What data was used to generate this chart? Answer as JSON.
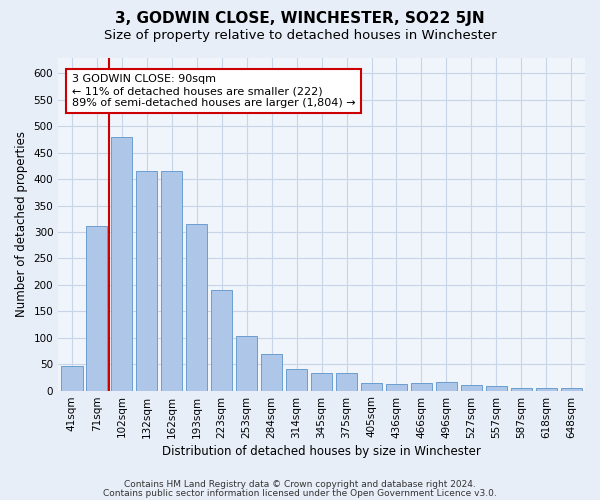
{
  "title": "3, GODWIN CLOSE, WINCHESTER, SO22 5JN",
  "subtitle": "Size of property relative to detached houses in Winchester",
  "xlabel": "Distribution of detached houses by size in Winchester",
  "ylabel": "Number of detached properties",
  "categories": [
    "41sqm",
    "71sqm",
    "102sqm",
    "132sqm",
    "162sqm",
    "193sqm",
    "223sqm",
    "253sqm",
    "284sqm",
    "314sqm",
    "345sqm",
    "375sqm",
    "405sqm",
    "436sqm",
    "466sqm",
    "496sqm",
    "527sqm",
    "557sqm",
    "587sqm",
    "618sqm",
    "648sqm"
  ],
  "values": [
    47,
    312,
    480,
    415,
    415,
    315,
    190,
    103,
    70,
    40,
    33,
    33,
    14,
    12,
    14,
    17,
    10,
    8,
    5,
    5,
    5
  ],
  "bar_color": "#aec6e8",
  "bar_edge_color": "#6a9fcf",
  "bar_width": 0.85,
  "vline_x_index": 2,
  "vline_color": "#cc0000",
  "annotation_text": "3 GODWIN CLOSE: 90sqm\n← 11% of detached houses are smaller (222)\n89% of semi-detached houses are larger (1,804) →",
  "annotation_box_color": "white",
  "annotation_box_edge_color": "#cc0000",
  "ylim": [
    0,
    630
  ],
  "yticks": [
    0,
    50,
    100,
    150,
    200,
    250,
    300,
    350,
    400,
    450,
    500,
    550,
    600
  ],
  "footer1": "Contains HM Land Registry data © Crown copyright and database right 2024.",
  "footer2": "Contains public sector information licensed under the Open Government Licence v3.0.",
  "bg_color": "#e8eef8",
  "plot_bg_color": "#f0f4fb",
  "grid_color": "#c8d4e8",
  "title_fontsize": 11,
  "subtitle_fontsize": 9.5,
  "axis_label_fontsize": 8.5,
  "tick_fontsize": 7.5,
  "footer_fontsize": 6.5,
  "annotation_fontsize": 8
}
